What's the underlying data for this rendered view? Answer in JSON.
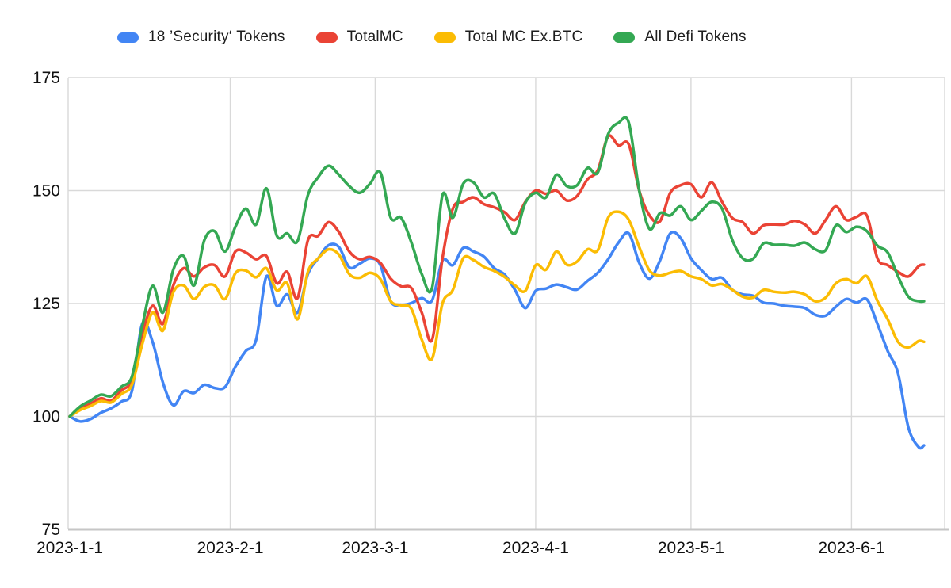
{
  "chart_data": {
    "type": "line",
    "title": "",
    "xlabel": "",
    "ylabel": "",
    "x_unit": "days since 2023-01-01",
    "grid": true,
    "legend_position": "top",
    "ylim": [
      75,
      175
    ],
    "yticks": [
      75,
      100,
      125,
      150,
      175
    ],
    "xlim_days": [
      0,
      169
    ],
    "xticks": [
      {
        "day": 0,
        "label": "2023-1-1"
      },
      {
        "day": 31,
        "label": "2023-2-1"
      },
      {
        "day": 59,
        "label": "2023-3-1"
      },
      {
        "day": 90,
        "label": "2023-4-1"
      },
      {
        "day": 120,
        "label": "2023-5-1"
      },
      {
        "day": 151,
        "label": "2023-6-1"
      }
    ],
    "x_days": [
      0,
      2,
      4,
      6,
      8,
      10,
      12,
      14,
      16,
      18,
      20,
      22,
      24,
      26,
      28,
      30,
      32,
      34,
      36,
      38,
      40,
      42,
      44,
      46,
      48,
      50,
      52,
      54,
      56,
      58,
      60,
      62,
      64,
      66,
      68,
      70,
      72,
      74,
      76,
      78,
      80,
      82,
      84,
      86,
      88,
      90,
      92,
      94,
      96,
      98,
      100,
      102,
      104,
      106,
      108,
      110,
      112,
      114,
      116,
      118,
      120,
      122,
      124,
      126,
      128,
      130,
      132,
      134,
      136,
      138,
      140,
      142,
      144,
      146,
      148,
      150,
      152,
      154,
      156,
      158,
      160,
      162,
      164,
      165
    ],
    "series": [
      {
        "name": "18 ’Security‘ Tokens",
        "color": "#4285F4",
        "values": [
          100,
          98.9,
          99.4,
          100.8,
          101.8,
          103.3,
          105.6,
          120.5,
          116.5,
          107.5,
          102.5,
          105.6,
          105.2,
          107,
          106.3,
          106.5,
          111,
          114.5,
          117,
          131,
          124.5,
          127,
          123,
          131.5,
          135,
          137.9,
          137.5,
          133,
          133.8,
          135,
          133.5,
          125.5,
          124.7,
          125.1,
          126.2,
          125.7,
          134.5,
          133.5,
          137.3,
          136.5,
          135.4,
          132.8,
          131.4,
          128,
          124,
          127.8,
          128.3,
          129.2,
          128.6,
          128.1,
          130,
          131.8,
          134.8,
          138.5,
          140.5,
          134,
          130.5,
          134.5,
          140.5,
          139.5,
          135,
          132.4,
          130.4,
          130.7,
          128,
          127,
          126.7,
          125.2,
          125,
          124.5,
          124.3,
          124,
          122.5,
          122.3,
          124.3,
          126,
          125.2,
          125.9,
          120.5,
          114.5,
          109.5,
          97.5,
          93.2,
          93.6
        ]
      },
      {
        "name": "TotalMC",
        "color": "#EA4335",
        "values": [
          100,
          101.7,
          102.8,
          104,
          103.5,
          105.8,
          108,
          118,
          124.5,
          120.5,
          129,
          132.8,
          131,
          133,
          133.5,
          131,
          136.5,
          136.3,
          134.8,
          135.5,
          129.5,
          132,
          126.2,
          139,
          140,
          143,
          140.8,
          136.5,
          134.8,
          135.3,
          134,
          130.5,
          128.8,
          128.4,
          123,
          117,
          135,
          146,
          147.5,
          148.5,
          147,
          146.3,
          145.2,
          143.5,
          147.5,
          150,
          149.3,
          150,
          147.8,
          148.8,
          152.5,
          154.5,
          162,
          160,
          160.2,
          150,
          144.5,
          143.2,
          149.5,
          151.2,
          151.4,
          148.5,
          151.8,
          147.5,
          143.9,
          143,
          140.5,
          142.3,
          142.5,
          142.5,
          143.3,
          142.5,
          140.5,
          143.5,
          146.5,
          143.5,
          144.2,
          144.4,
          135,
          133.5,
          132,
          131,
          133.3,
          133.6
        ]
      },
      {
        "name": "Total MC Ex.BTC",
        "color": "#FBBC04",
        "values": [
          100,
          101.4,
          102.3,
          103.4,
          103.1,
          105,
          107,
          116,
          123,
          119,
          127.5,
          129,
          126,
          128.7,
          129,
          126,
          131.7,
          132.3,
          130.8,
          132.8,
          127.9,
          129.5,
          121.5,
          132,
          135,
          137,
          135.8,
          131.5,
          130.7,
          131.8,
          130.4,
          125.5,
          124.6,
          123.8,
          117,
          112.8,
          125,
          128,
          135,
          134.6,
          133.1,
          132.2,
          130.9,
          129,
          127.8,
          133.5,
          132.5,
          136.5,
          133.6,
          134.3,
          137,
          136.8,
          144,
          145.3,
          143.5,
          137.5,
          132.3,
          131.2,
          131.8,
          132.2,
          131,
          130.4,
          129,
          129.3,
          128,
          126.5,
          126.3,
          128,
          127.6,
          127.4,
          127.6,
          127,
          125.5,
          126.3,
          129.5,
          130.4,
          129.5,
          131,
          125.6,
          121.5,
          116.5,
          115.3,
          116.7,
          116.5
        ]
      },
      {
        "name": "All Defi Tokens",
        "color": "#34A853",
        "values": [
          100,
          102.2,
          103.5,
          104.8,
          104.5,
          106.6,
          108.8,
          120,
          128.9,
          123,
          132.5,
          135.5,
          129,
          139,
          141,
          136.5,
          142,
          146,
          142.5,
          150.5,
          140,
          140.5,
          138.8,
          149,
          153,
          155.5,
          153.5,
          151,
          149.5,
          151.5,
          154,
          144,
          144,
          138.5,
          131.5,
          128.5,
          149,
          144,
          151.5,
          151.8,
          148.5,
          149.3,
          143.8,
          140.5,
          147.3,
          149.5,
          148.5,
          153.5,
          151,
          151.2,
          155,
          154,
          162.5,
          165,
          165,
          150,
          141.5,
          145,
          144.5,
          146.5,
          143.5,
          145.5,
          147.5,
          146,
          139,
          135,
          134.9,
          138.3,
          138,
          138,
          137.8,
          138.5,
          137,
          136.8,
          142.3,
          140.8,
          142,
          141,
          137.8,
          136.3,
          131,
          126.5,
          125.5,
          125.5
        ]
      }
    ],
    "style": {
      "gridline_color": "#d9d9d9",
      "axis_line_color": "#c6c6c6",
      "tick_label_color": "#111111",
      "background": "#ffffff",
      "line_width": 3.5
    }
  }
}
